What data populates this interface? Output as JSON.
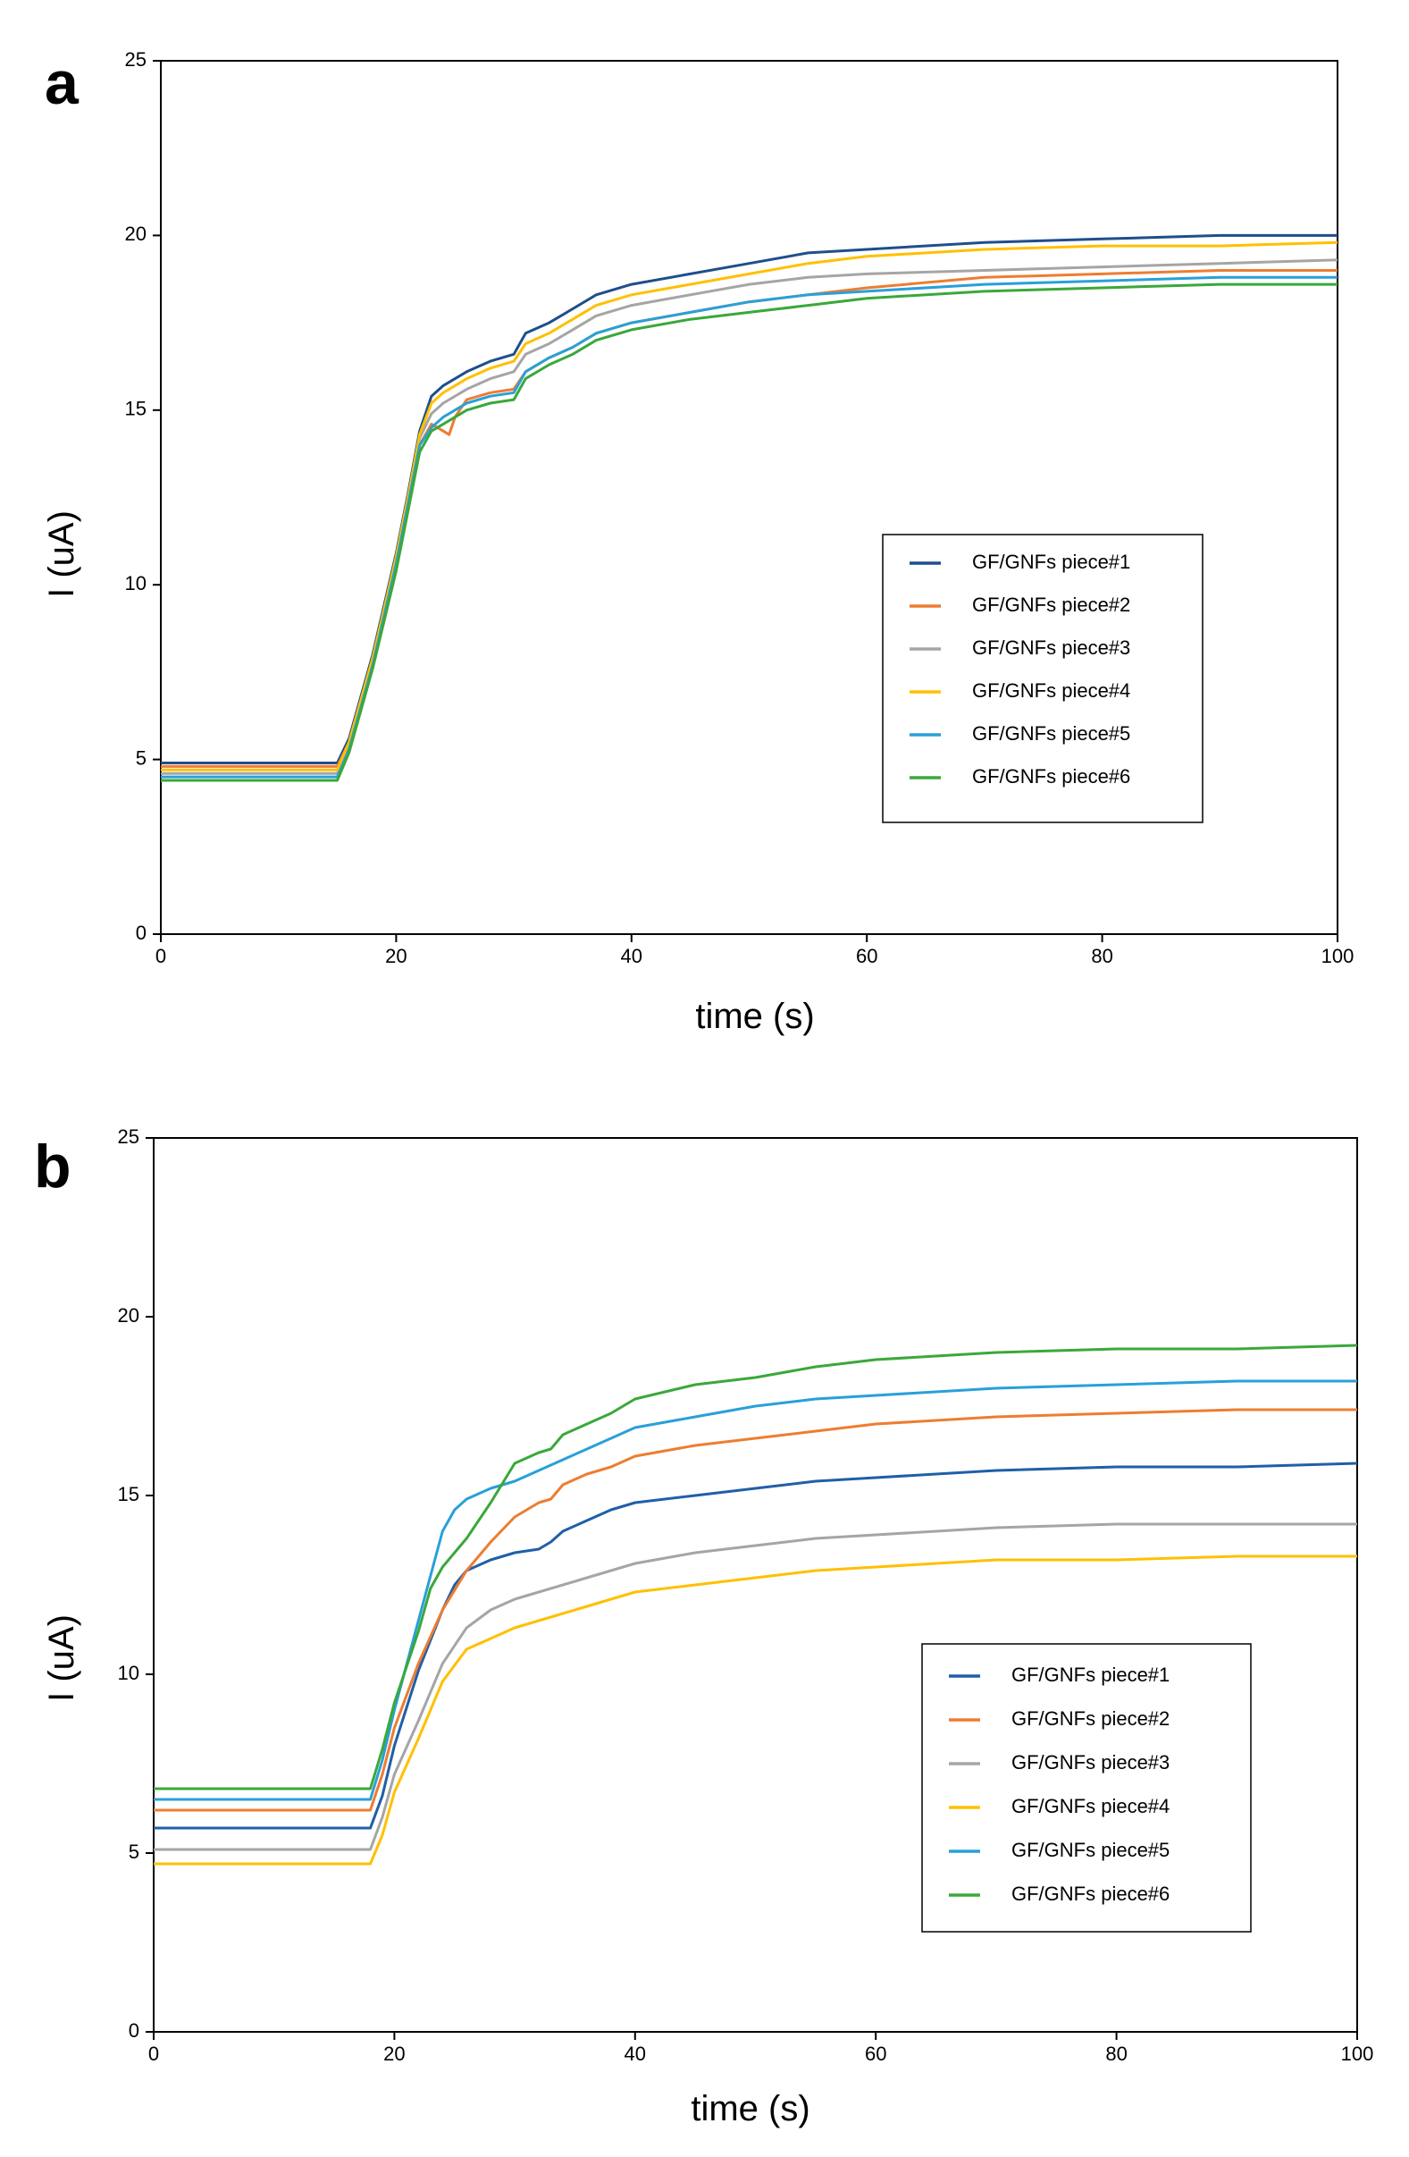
{
  "figure": {
    "panels": [
      "a",
      "b"
    ]
  },
  "chart_data": [
    {
      "type": "line",
      "panel": "a",
      "title": "",
      "xlabel": "time (s)",
      "ylabel": "I (uA)",
      "xlim": [
        0,
        100
      ],
      "ylim": [
        0,
        25
      ],
      "xticks": [
        0,
        20,
        40,
        60,
        80,
        100
      ],
      "yticks": [
        0,
        5,
        10,
        15,
        20,
        25
      ],
      "grid": false,
      "legend_position": "center-right",
      "series": [
        {
          "name": "GF/GNFs piece#1",
          "color": "#1f4e8c",
          "x": [
            0,
            15,
            16,
            18,
            20,
            21,
            22,
            23,
            24,
            26,
            28,
            30,
            31,
            33,
            35,
            37,
            40,
            45,
            50,
            55,
            60,
            70,
            80,
            90,
            100
          ],
          "y": [
            4.9,
            4.9,
            5.6,
            8.0,
            10.9,
            12.6,
            14.4,
            15.4,
            15.7,
            16.1,
            16.4,
            16.6,
            17.2,
            17.5,
            17.9,
            18.3,
            18.6,
            18.9,
            19.2,
            19.5,
            19.6,
            19.8,
            19.9,
            20.0,
            20.0
          ]
        },
        {
          "name": "GF/GNFs piece#2",
          "color": "#ed7d31",
          "x": [
            0,
            15,
            16,
            18,
            20,
            21,
            22,
            23,
            24,
            24.5,
            25,
            26,
            28,
            30,
            31,
            33,
            35,
            37,
            40,
            45,
            50,
            55,
            60,
            70,
            80,
            90,
            100
          ],
          "y": [
            4.8,
            4.8,
            5.5,
            7.9,
            10.7,
            12.4,
            14.0,
            14.6,
            14.4,
            14.3,
            14.8,
            15.3,
            15.5,
            15.6,
            16.1,
            16.5,
            16.8,
            17.2,
            17.5,
            17.8,
            18.1,
            18.3,
            18.5,
            18.8,
            18.9,
            19.0,
            19.0
          ]
        },
        {
          "name": "GF/GNFs piece#3",
          "color": "#a5a5a5",
          "x": [
            0,
            15,
            16,
            18,
            20,
            21,
            22,
            23,
            24,
            26,
            28,
            30,
            31,
            33,
            35,
            37,
            40,
            45,
            50,
            55,
            60,
            70,
            80,
            90,
            100
          ],
          "y": [
            4.6,
            4.6,
            5.4,
            7.8,
            10.8,
            12.5,
            14.2,
            14.9,
            15.2,
            15.6,
            15.9,
            16.1,
            16.6,
            16.9,
            17.3,
            17.7,
            18.0,
            18.3,
            18.6,
            18.8,
            18.9,
            19.0,
            19.1,
            19.2,
            19.3
          ]
        },
        {
          "name": "GF/GNFs piece#4",
          "color": "#ffc000",
          "x": [
            0,
            15,
            16,
            18,
            20,
            21,
            22,
            23,
            24,
            26,
            28,
            30,
            31,
            33,
            35,
            37,
            40,
            45,
            50,
            55,
            60,
            70,
            80,
            90,
            100
          ],
          "y": [
            4.7,
            4.7,
            5.5,
            7.9,
            10.8,
            12.5,
            14.3,
            15.2,
            15.5,
            15.9,
            16.2,
            16.4,
            16.9,
            17.2,
            17.6,
            18.0,
            18.3,
            18.6,
            18.9,
            19.2,
            19.4,
            19.6,
            19.7,
            19.7,
            19.8
          ]
        },
        {
          "name": "GF/GNFs piece#5",
          "color": "#29a0d8",
          "x": [
            0,
            15,
            16,
            18,
            20,
            21,
            22,
            23,
            24,
            26,
            28,
            30,
            31,
            33,
            35,
            37,
            40,
            45,
            50,
            55,
            60,
            70,
            80,
            90,
            100
          ],
          "y": [
            4.5,
            4.5,
            5.3,
            7.7,
            10.6,
            12.3,
            14.0,
            14.5,
            14.8,
            15.2,
            15.4,
            15.5,
            16.1,
            16.5,
            16.8,
            17.2,
            17.5,
            17.8,
            18.1,
            18.3,
            18.4,
            18.6,
            18.7,
            18.8,
            18.8
          ]
        },
        {
          "name": "GF/GNFs piece#6",
          "color": "#3aa83a",
          "x": [
            0,
            15,
            16,
            18,
            20,
            21,
            22,
            23,
            24,
            26,
            28,
            30,
            31,
            33,
            35,
            37,
            40,
            45,
            50,
            55,
            60,
            70,
            80,
            90,
            100
          ],
          "y": [
            4.4,
            4.4,
            5.2,
            7.6,
            10.4,
            12.1,
            13.8,
            14.4,
            14.6,
            15.0,
            15.2,
            15.3,
            15.9,
            16.3,
            16.6,
            17.0,
            17.3,
            17.6,
            17.8,
            18.0,
            18.2,
            18.4,
            18.5,
            18.6,
            18.6
          ]
        }
      ]
    },
    {
      "type": "line",
      "panel": "b",
      "title": "",
      "xlabel": "time (s)",
      "ylabel": "I (uA)",
      "xlim": [
        0,
        100
      ],
      "ylim": [
        0,
        25
      ],
      "xticks": [
        0,
        20,
        40,
        60,
        80,
        100
      ],
      "yticks": [
        0,
        5,
        10,
        15,
        20,
        25
      ],
      "grid": false,
      "legend_position": "center-right",
      "series": [
        {
          "name": "GF/GNFs piece#1",
          "color": "#1f5fa8",
          "x": [
            0,
            18,
            19,
            20,
            22,
            24,
            25,
            26,
            28,
            30,
            32,
            33,
            34,
            36,
            38,
            40,
            45,
            50,
            55,
            60,
            70,
            80,
            90,
            100
          ],
          "y": [
            5.7,
            5.7,
            6.6,
            8.0,
            10.1,
            11.8,
            12.5,
            12.9,
            13.2,
            13.4,
            13.5,
            13.7,
            14.0,
            14.3,
            14.6,
            14.8,
            15.0,
            15.2,
            15.4,
            15.5,
            15.7,
            15.8,
            15.8,
            15.9
          ]
        },
        {
          "name": "GF/GNFs piece#2",
          "color": "#ed7d31",
          "x": [
            0,
            18,
            19,
            20,
            22,
            24,
            26,
            28,
            30,
            32,
            33,
            34,
            36,
            38,
            40,
            45,
            50,
            55,
            60,
            70,
            80,
            90,
            100
          ],
          "y": [
            6.2,
            6.2,
            7.2,
            8.5,
            10.3,
            11.8,
            12.9,
            13.7,
            14.4,
            14.8,
            14.9,
            15.3,
            15.6,
            15.8,
            16.1,
            16.4,
            16.6,
            16.8,
            17.0,
            17.2,
            17.3,
            17.4,
            17.4
          ]
        },
        {
          "name": "GF/GNFs piece#3",
          "color": "#a5a5a5",
          "x": [
            0,
            18,
            19,
            20,
            22,
            24,
            26,
            28,
            30,
            32,
            34,
            36,
            38,
            40,
            45,
            50,
            55,
            60,
            70,
            80,
            90,
            100
          ],
          "y": [
            5.1,
            5.1,
            6.0,
            7.2,
            8.7,
            10.3,
            11.3,
            11.8,
            12.1,
            12.3,
            12.5,
            12.7,
            12.9,
            13.1,
            13.4,
            13.6,
            13.8,
            13.9,
            14.1,
            14.2,
            14.2,
            14.2
          ]
        },
        {
          "name": "GF/GNFs piece#4",
          "color": "#ffc000",
          "x": [
            0,
            18,
            19,
            20,
            22,
            24,
            26,
            28,
            30,
            32,
            34,
            36,
            38,
            40,
            45,
            50,
            55,
            60,
            70,
            80,
            90,
            100
          ],
          "y": [
            4.7,
            4.7,
            5.5,
            6.7,
            8.2,
            9.8,
            10.7,
            11.0,
            11.3,
            11.5,
            11.7,
            11.9,
            12.1,
            12.3,
            12.5,
            12.7,
            12.9,
            13.0,
            13.2,
            13.2,
            13.3,
            13.3
          ]
        },
        {
          "name": "GF/GNFs piece#5",
          "color": "#29a0d8",
          "x": [
            0,
            18,
            19,
            20,
            22,
            24,
            25,
            26,
            28,
            30,
            32,
            34,
            36,
            38,
            40,
            45,
            50,
            55,
            60,
            70,
            80,
            90,
            100
          ],
          "y": [
            6.5,
            6.5,
            7.6,
            9.0,
            11.5,
            14.0,
            14.6,
            14.9,
            15.2,
            15.4,
            15.7,
            16.0,
            16.3,
            16.6,
            16.9,
            17.2,
            17.5,
            17.7,
            17.8,
            18.0,
            18.1,
            18.2,
            18.2
          ]
        },
        {
          "name": "GF/GNFs piece#6",
          "color": "#3aa83a",
          "x": [
            0,
            18,
            19,
            20,
            22,
            23,
            24,
            26,
            28,
            30,
            32,
            33,
            34,
            36,
            38,
            40,
            45,
            50,
            55,
            60,
            70,
            80,
            90,
            100
          ],
          "y": [
            6.8,
            6.8,
            7.9,
            9.2,
            11.2,
            12.4,
            13.0,
            13.8,
            14.8,
            15.9,
            16.2,
            16.3,
            16.7,
            17.0,
            17.3,
            17.7,
            18.1,
            18.3,
            18.6,
            18.8,
            19.0,
            19.1,
            19.1,
            19.2
          ]
        }
      ]
    }
  ]
}
